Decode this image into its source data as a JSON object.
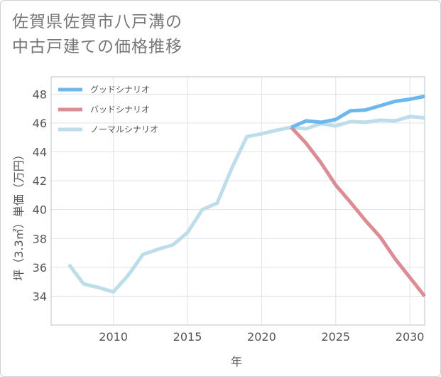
{
  "chart_data": {
    "type": "line",
    "title_lines": [
      "佐賀県佐賀市八戸溝の",
      "中古戸建ての価格推移"
    ],
    "xlabel": "年",
    "ylabel": "坪（3.3㎡）単価（万円）",
    "xlim": [
      2005.8,
      2031
    ],
    "ylim": [
      32,
      49.2
    ],
    "xticks": [
      2010,
      2015,
      2020,
      2025,
      2030
    ],
    "yticks": [
      34,
      36,
      38,
      40,
      42,
      44,
      46,
      48
    ],
    "grid": true,
    "legend_position": "top-left",
    "series": [
      {
        "name": "グッドシナリオ",
        "color": "#6cb8ee",
        "x": [
          2022,
          2023,
          2024,
          2025,
          2026,
          2027,
          2028,
          2029,
          2030,
          2031
        ],
        "y": [
          45.7,
          46.15,
          46.05,
          46.25,
          46.85,
          46.9,
          47.2,
          47.5,
          47.65,
          47.85
        ]
      },
      {
        "name": "バッドシナリオ",
        "color": "#dc8c95",
        "x": [
          2022,
          2023,
          2024,
          2025,
          2026,
          2027,
          2028,
          2029,
          2030,
          2031
        ],
        "y": [
          45.7,
          44.6,
          43.25,
          41.7,
          40.5,
          39.25,
          38.1,
          36.6,
          35.3,
          34.0
        ]
      },
      {
        "name": "ノーマルシナリオ",
        "color": "#bcdde9",
        "x": [
          2007,
          2008,
          2009,
          2010,
          2011,
          2012,
          2013,
          2014,
          2015,
          2016,
          2017,
          2018,
          2019,
          2020,
          2021,
          2022,
          2023,
          2024,
          2025,
          2026,
          2027,
          2028,
          2029,
          2030,
          2031
        ],
        "y": [
          36.2,
          34.85,
          34.6,
          34.3,
          35.45,
          36.9,
          37.25,
          37.55,
          38.4,
          40.0,
          40.45,
          42.9,
          45.05,
          45.25,
          45.5,
          45.7,
          45.6,
          45.95,
          45.8,
          46.1,
          46.05,
          46.2,
          46.15,
          46.45,
          46.35
        ]
      }
    ]
  }
}
